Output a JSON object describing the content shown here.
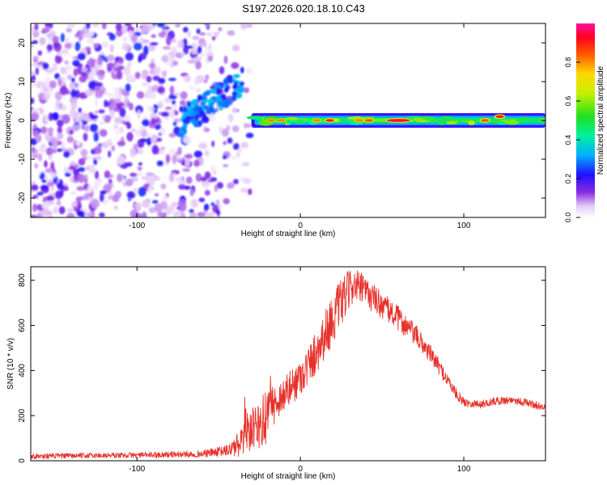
{
  "figure_title": "S197.2026.020.18.10.C43",
  "chart_data": [
    {
      "type": "heatmap",
      "title": "S197.2026.020.18.10.C43",
      "xlabel": "Height of straight line (km)",
      "ylabel": "Frequency (Hz)",
      "xlim": [
        -165,
        150
      ],
      "ylim": [
        -25,
        25
      ],
      "xticks": [
        -100,
        0,
        100
      ],
      "yticks": [
        -20,
        -10,
        0,
        10,
        20
      ],
      "colorbar": {
        "label": "Normalized spectral amplitude",
        "range": [
          0,
          1
        ],
        "ticks": [
          0.0,
          0.2,
          0.4,
          0.6,
          0.8
        ],
        "colormap": "rainbow (white→violet→blue→cyan→green→yellow→red→magenta)"
      },
      "segments": [
        {
          "x_range": [
            -165,
            -30
          ],
          "description": "diffuse broadband noise across full frequency range",
          "amplitude": [
            0.05,
            0.25
          ]
        },
        {
          "x_range": [
            -75,
            -35
          ],
          "description": "rising chirp from ~0 Hz to ~10 Hz",
          "amplitude": [
            0.2,
            0.35
          ]
        },
        {
          "x_range": [
            -30,
            150
          ],
          "description": "narrow band centred at 0 Hz",
          "center_hz": 0,
          "half_width_hz": 1.5,
          "amplitude": [
            0.3,
            1.0
          ]
        }
      ],
      "hotspots": [
        {
          "x": -18,
          "y": 0,
          "value": 0.8
        },
        {
          "x": -12,
          "y": 0,
          "value": 0.8
        },
        {
          "x": 10,
          "y": 0,
          "value": 0.8
        },
        {
          "x": 18,
          "y": 0,
          "value": 0.9
        },
        {
          "x": 36,
          "y": 0,
          "value": 0.8
        },
        {
          "x": 42,
          "y": 0,
          "value": 0.85
        },
        {
          "x": 60,
          "y": 0,
          "value": 0.95
        },
        {
          "x": 113,
          "y": 0,
          "value": 0.85
        },
        {
          "x": 122,
          "y": 1,
          "value": 0.9
        }
      ]
    },
    {
      "type": "line",
      "xlabel": "Height of straight line (km)",
      "ylabel": "SNR (10 * v/v)",
      "xlim": [
        -165,
        150
      ],
      "ylim": [
        0,
        860
      ],
      "xticks": [
        -100,
        0,
        100
      ],
      "yticks": [
        0,
        200,
        400,
        600,
        800
      ],
      "series": [
        {
          "name": "SNR",
          "color": "#e8302a",
          "envelope_x": [
            -165,
            -100,
            -60,
            -45,
            -35,
            -28,
            -22,
            -15,
            -5,
            5,
            15,
            25,
            32,
            38,
            50,
            60,
            70,
            80,
            90,
            95,
            100,
            110,
            120,
            130,
            140,
            150
          ],
          "envelope_y": [
            20,
            25,
            30,
            45,
            80,
            140,
            180,
            260,
            330,
            420,
            560,
            700,
            780,
            760,
            690,
            630,
            560,
            470,
            360,
            300,
            260,
            250,
            265,
            270,
            255,
            235
          ],
          "noise_amplitude": [
            12,
            12,
            15,
            25,
            70,
            110,
            120,
            80,
            80,
            90,
            110,
            110,
            80,
            70,
            60,
            55,
            50,
            40,
            30,
            25,
            20,
            18,
            18,
            18,
            18,
            16
          ]
        }
      ]
    }
  ]
}
